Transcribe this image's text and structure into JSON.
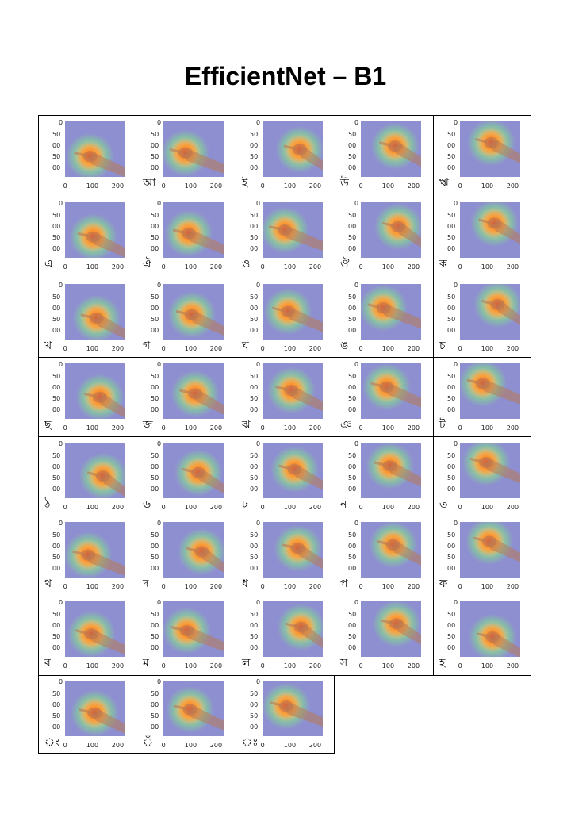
{
  "title": "EfficientNet – B1",
  "axis": {
    "y_ticks": [
      "0",
      "50",
      "00",
      "50",
      "00"
    ],
    "x_ticks": [
      "0",
      "100",
      "200"
    ]
  },
  "colors": {
    "background": "#8e8fd0",
    "heat_hot": "#ff3a1a",
    "heat_warm": "#ffd23a",
    "heat_mid": "#7fe08a",
    "skin": "#b87a55"
  },
  "cells": [
    {
      "label": ""
    },
    {
      "label": "আ"
    },
    {
      "label": "ই"
    },
    {
      "label": "উ"
    },
    {
      "label": "ঋ"
    },
    {
      "label": "এ"
    },
    {
      "label": "ঐ"
    },
    {
      "label": "ও"
    },
    {
      "label": "ঔ"
    },
    {
      "label": "ক"
    },
    {
      "label": "খ"
    },
    {
      "label": "গ"
    },
    {
      "label": "ঘ"
    },
    {
      "label": "ঙ"
    },
    {
      "label": "চ"
    },
    {
      "label": "ছ"
    },
    {
      "label": "জ"
    },
    {
      "label": "ঝ"
    },
    {
      "label": "ঞ"
    },
    {
      "label": "ট"
    },
    {
      "label": "ঠ"
    },
    {
      "label": "ড"
    },
    {
      "label": "ঢ"
    },
    {
      "label": "ন"
    },
    {
      "label": "ত"
    },
    {
      "label": "থ"
    },
    {
      "label": "দ"
    },
    {
      "label": "ধ"
    },
    {
      "label": "প"
    },
    {
      "label": "ফ"
    },
    {
      "label": "ব"
    },
    {
      "label": "ম"
    },
    {
      "label": "ল"
    },
    {
      "label": "স"
    },
    {
      "label": "হ"
    },
    {
      "label": "ং"
    },
    {
      "label": "ঁ"
    },
    {
      "label": "ঃ"
    }
  ]
}
